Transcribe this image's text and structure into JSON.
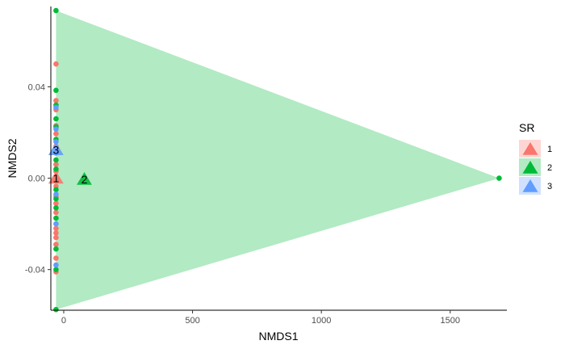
{
  "chart_data": {
    "type": "scatter",
    "xlabel": "NMDS1",
    "ylabel": "NMDS2",
    "xlim": [
      -50,
      1720
    ],
    "ylim": [
      -0.0578,
      0.0752
    ],
    "x_ticks": [
      0,
      500,
      1000,
      1500
    ],
    "x_tick_labels": [
      "0",
      "500",
      "1000",
      "1500"
    ],
    "y_ticks": [
      -0.04,
      0.0,
      0.04
    ],
    "y_tick_labels": [
      "-0.04",
      "0.00",
      "0.04"
    ],
    "grid": false,
    "legend": {
      "title": "SR",
      "position": "right",
      "entries": [
        {
          "label": "1",
          "color": "#F8766D"
        },
        {
          "label": "2",
          "color": "#00BA38"
        },
        {
          "label": "3",
          "color": "#619CFF"
        }
      ]
    },
    "hull": {
      "group": "2",
      "color": "#00BA38",
      "points": [
        [
          -30,
          0.0734
        ],
        [
          1690,
          0.0
        ],
        [
          -30,
          -0.0575
        ]
      ]
    },
    "series": [
      {
        "name": "1",
        "color": "#F8766D",
        "points": [
          [
            -30,
            0.05
          ],
          [
            -30,
            0.034
          ],
          [
            -30,
            0.03
          ],
          [
            -30,
            0.023
          ],
          [
            -30,
            0.0195
          ],
          [
            -30,
            0.014
          ],
          [
            -30,
            0.006
          ],
          [
            -30,
            0.003
          ],
          [
            -30,
            0.0
          ],
          [
            -30,
            -0.0035
          ],
          [
            -30,
            -0.008
          ],
          [
            -30,
            -0.011
          ],
          [
            -30,
            -0.015
          ],
          [
            -30,
            -0.022
          ],
          [
            -30,
            -0.024
          ],
          [
            -30,
            -0.026
          ],
          [
            -30,
            -0.029
          ],
          [
            -30,
            -0.035
          ],
          [
            -30,
            -0.041
          ]
        ]
      },
      {
        "name": "2",
        "color": "#00BA38",
        "points": [
          [
            -30,
            0.0734
          ],
          [
            -30,
            0.0385
          ],
          [
            -30,
            0.032
          ],
          [
            -30,
            0.026
          ],
          [
            -30,
            0.0225
          ],
          [
            -30,
            0.017
          ],
          [
            -30,
            0.008
          ],
          [
            -30,
            0.004
          ],
          [
            -30,
            -0.001
          ],
          [
            -30,
            -0.005
          ],
          [
            -30,
            -0.009
          ],
          [
            -30,
            -0.013
          ],
          [
            -30,
            -0.0175
          ],
          [
            -30,
            -0.031
          ],
          [
            -30,
            -0.04
          ],
          [
            -30,
            -0.0575
          ],
          [
            1690,
            0.0
          ]
        ]
      },
      {
        "name": "3",
        "color": "#619CFF",
        "points": [
          [
            -30,
            0.031
          ],
          [
            -30,
            0.0215
          ],
          [
            -30,
            0.016
          ],
          [
            -30,
            0.011
          ],
          [
            -30,
            -0.007
          ],
          [
            -30,
            -0.02
          ],
          [
            -30,
            -0.038
          ]
        ]
      }
    ],
    "centroids": [
      {
        "label": "1",
        "color": "#F8766D",
        "x": -30,
        "y": 0.0
      },
      {
        "label": "2",
        "color": "#00BA38",
        "x": 80,
        "y": -0.0005
      },
      {
        "label": "3",
        "color": "#619CFF",
        "x": -30,
        "y": 0.0125
      }
    ]
  }
}
